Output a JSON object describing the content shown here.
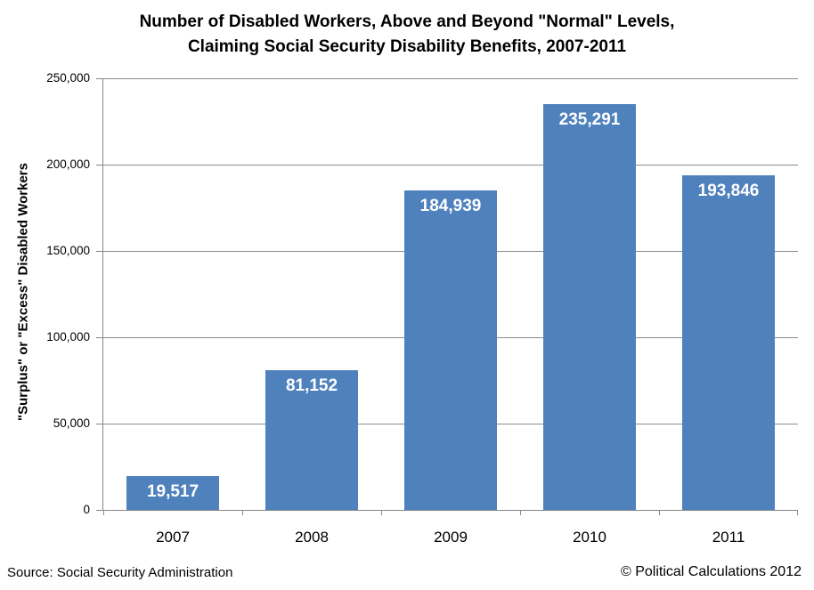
{
  "title": {
    "lines": [
      "Number of Disabled Workers, Above and Beyond \"Normal\" Levels,",
      "Claiming Social Security Disability Benefits, 2007-2011"
    ]
  },
  "footer": {
    "source": "Source: Social Security Administration",
    "copyright": "© Political Calculations 2012"
  },
  "chart_data": {
    "type": "bar",
    "title": "Number of Disabled Workers, Above and Beyond \"Normal\" Levels, Claiming Social Security Disability Benefits, 2007-2011",
    "categories": [
      "2007",
      "2008",
      "2009",
      "2010",
      "2011"
    ],
    "values": [
      19517,
      81152,
      184939,
      235291,
      193846
    ],
    "value_labels": [
      "19,517",
      "81,152",
      "184,939",
      "235,291",
      "193,846"
    ],
    "xlabel": "",
    "ylabel": "\"Surplus\" or \"Excess\" Disabled Workers",
    "ylim": [
      0,
      250000
    ],
    "ytick_interval": 50000,
    "ytick_labels": [
      "0",
      "50,000",
      "100,000",
      "150,000",
      "200,000",
      "250,000"
    ],
    "grid": true,
    "legend": false,
    "bar_color": "#4F81BD",
    "value_label_color": "#FFFFFF",
    "axis_color": "#878787",
    "bar_width_fraction": 0.667
  }
}
